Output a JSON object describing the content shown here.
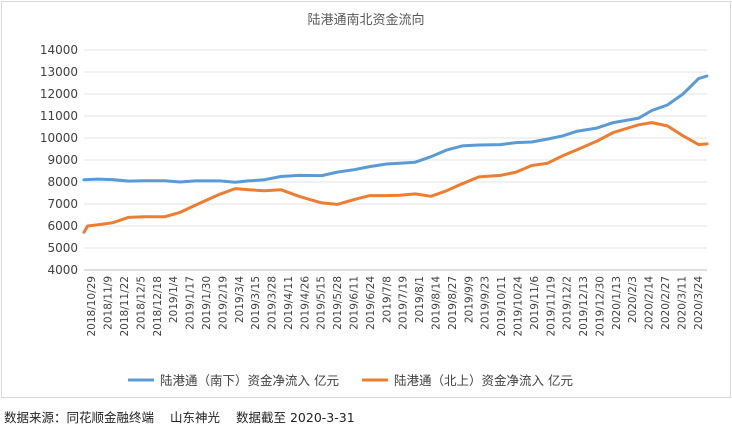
{
  "chart_data": {
    "type": "line",
    "title": "陆港通南北资金流向",
    "ylim": [
      4000,
      14000
    ],
    "yticks": [
      4000,
      5000,
      6000,
      7000,
      8000,
      9000,
      10000,
      11000,
      12000,
      13000,
      14000
    ],
    "x_range": [
      "2018-10-29",
      "2020-03-31"
    ],
    "xtick_labels": [
      "2018/10/29",
      "2018/11/9",
      "2018/11/22",
      "2018/12/5",
      "2018/12/18",
      "2019/1/4",
      "2019/1/17",
      "2019/1/30",
      "2019/2/19",
      "2019/3/4",
      "2019/3/15",
      "2019/3/28",
      "2019/4/11",
      "2019/4/26",
      "2019/5/15",
      "2019/5/28",
      "2019/6/11",
      "2019/6/24",
      "2019/7/8",
      "2019/7/19",
      "2019/8/1",
      "2019/8/14",
      "2019/8/27",
      "2019/9/9",
      "2019/9/23",
      "2019/10/11",
      "2019/10/24",
      "2019/11/6",
      "2019/11/19",
      "2019/12/2",
      "2019/12/13",
      "2019/12/30",
      "2020/1/13",
      "2020/2/3",
      "2020/2/14",
      "2020/2/27",
      "2020/3/11",
      "2020/3/24"
    ],
    "legend_position": "bottom",
    "series": [
      {
        "name": "陆港通（南下）资金净流入 亿元",
        "color": "#5b9bd5",
        "points": [
          [
            "2018-10-29",
            8100
          ],
          [
            "2018-11-09",
            8130
          ],
          [
            "2018-11-22",
            8110
          ],
          [
            "2018-12-05",
            8040
          ],
          [
            "2018-12-18",
            8060
          ],
          [
            "2019-01-04",
            8060
          ],
          [
            "2019-01-17",
            8000
          ],
          [
            "2019-01-30",
            8050
          ],
          [
            "2019-02-19",
            8050
          ],
          [
            "2019-03-04",
            7990
          ],
          [
            "2019-03-15",
            8050
          ],
          [
            "2019-03-28",
            8100
          ],
          [
            "2019-04-11",
            8250
          ],
          [
            "2019-04-26",
            8300
          ],
          [
            "2019-05-15",
            8290
          ],
          [
            "2019-05-28",
            8450
          ],
          [
            "2019-06-11",
            8560
          ],
          [
            "2019-06-24",
            8700
          ],
          [
            "2019-07-08",
            8820
          ],
          [
            "2019-07-19",
            8850
          ],
          [
            "2019-08-01",
            8900
          ],
          [
            "2019-08-14",
            9150
          ],
          [
            "2019-08-27",
            9450
          ],
          [
            "2019-09-09",
            9640
          ],
          [
            "2019-09-23",
            9680
          ],
          [
            "2019-10-11",
            9700
          ],
          [
            "2019-10-24",
            9790
          ],
          [
            "2019-11-06",
            9820
          ],
          [
            "2019-11-19",
            9950
          ],
          [
            "2019-12-02",
            10100
          ],
          [
            "2019-12-13",
            10300
          ],
          [
            "2019-12-30",
            10450
          ],
          [
            "2020-01-13",
            10700
          ],
          [
            "2020-02-03",
            10900
          ],
          [
            "2020-02-14",
            11250
          ],
          [
            "2020-02-27",
            11500
          ],
          [
            "2020-03-11",
            12000
          ],
          [
            "2020-03-24",
            12700
          ],
          [
            "2020-03-31",
            12820
          ]
        ]
      },
      {
        "name": "陆港通（北上）资金净流入 亿元",
        "color": "#ed7d31",
        "points": [
          [
            "2018-10-29",
            5720
          ],
          [
            "2018-11-01",
            6000
          ],
          [
            "2018-11-09",
            6050
          ],
          [
            "2018-11-22",
            6150
          ],
          [
            "2018-12-05",
            6390
          ],
          [
            "2018-12-18",
            6420
          ],
          [
            "2019-01-04",
            6420
          ],
          [
            "2019-01-17",
            6620
          ],
          [
            "2019-01-30",
            6950
          ],
          [
            "2019-02-19",
            7440
          ],
          [
            "2019-03-04",
            7700
          ],
          [
            "2019-03-15",
            7650
          ],
          [
            "2019-03-28",
            7600
          ],
          [
            "2019-04-11",
            7650
          ],
          [
            "2019-04-26",
            7350
          ],
          [
            "2019-05-15",
            7050
          ],
          [
            "2019-05-28",
            6980
          ],
          [
            "2019-06-11",
            7200
          ],
          [
            "2019-06-24",
            7380
          ],
          [
            "2019-07-08",
            7380
          ],
          [
            "2019-07-19",
            7400
          ],
          [
            "2019-08-01",
            7460
          ],
          [
            "2019-08-14",
            7350
          ],
          [
            "2019-08-27",
            7600
          ],
          [
            "2019-09-09",
            7920
          ],
          [
            "2019-09-23",
            8230
          ],
          [
            "2019-10-11",
            8300
          ],
          [
            "2019-10-24",
            8450
          ],
          [
            "2019-11-06",
            8750
          ],
          [
            "2019-11-19",
            8850
          ],
          [
            "2019-12-02",
            9200
          ],
          [
            "2019-12-13",
            9450
          ],
          [
            "2019-12-30",
            9850
          ],
          [
            "2020-01-13",
            10250
          ],
          [
            "2020-02-03",
            10600
          ],
          [
            "2020-02-14",
            10700
          ],
          [
            "2020-02-27",
            10550
          ],
          [
            "2020-03-11",
            10100
          ],
          [
            "2020-03-24",
            9700
          ],
          [
            "2020-03-31",
            9730
          ]
        ]
      }
    ]
  },
  "footer": {
    "source": "数据来源：同花顺金融终端",
    "author": "山东神光",
    "cutoff": "数据截至 2020-3-31"
  }
}
